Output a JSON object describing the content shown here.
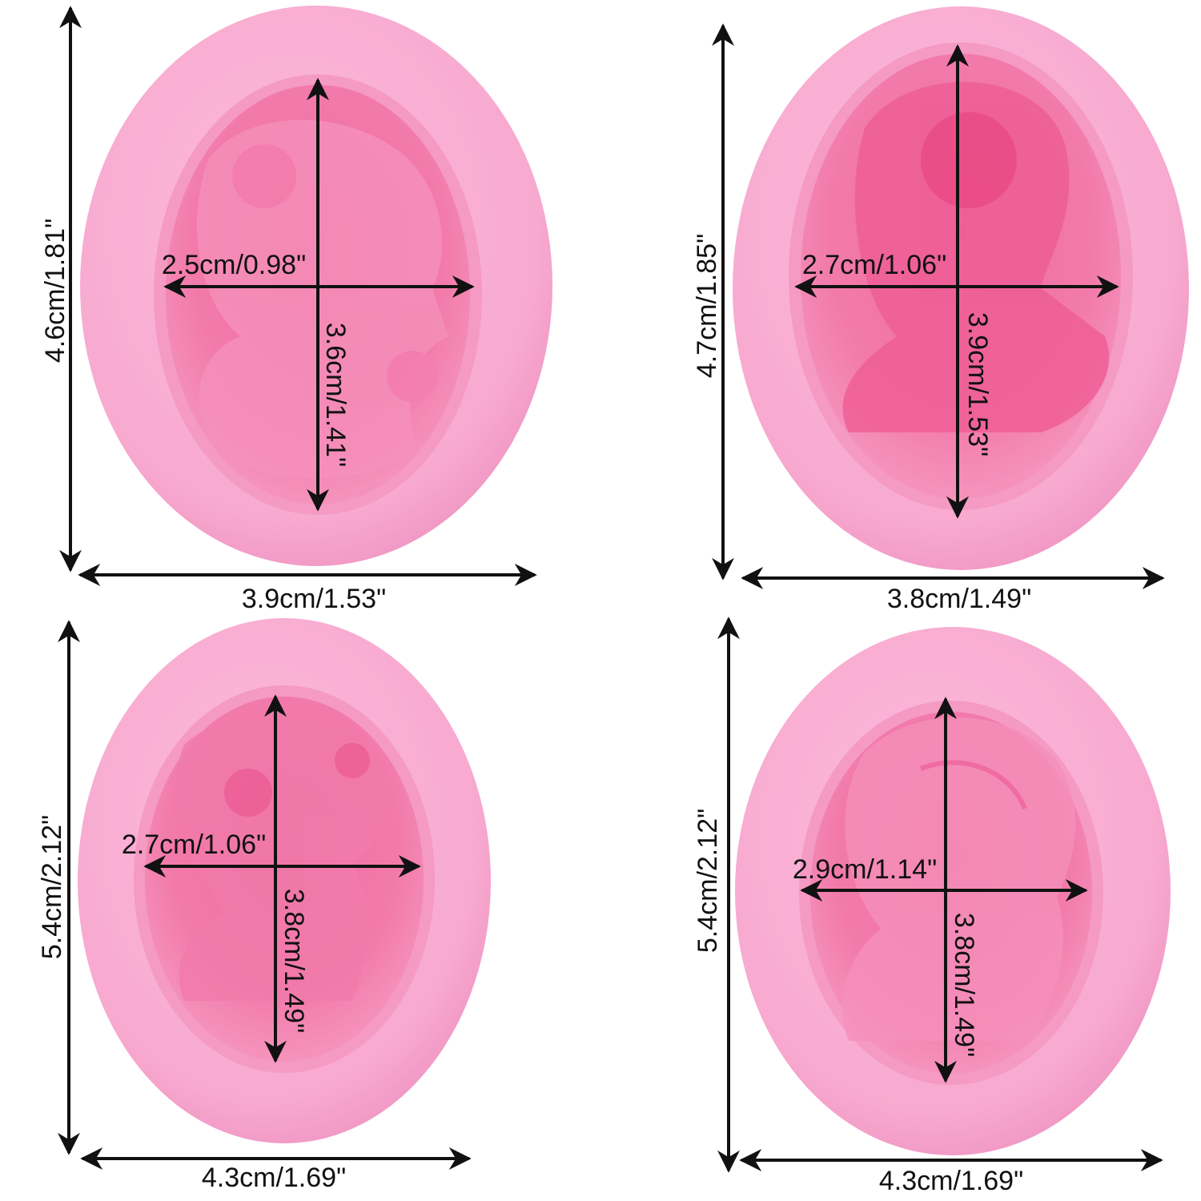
{
  "colors": {
    "mold_outer": "#f8a9cf",
    "mold_rim_shadow": "#ef8fc0",
    "cavity_fill": "#f27bab",
    "cavity_deep": "#ec5c94",
    "arrow": "#111111",
    "background": "#ffffff"
  },
  "icons": [
    "cameo-mold-oval",
    "cameo-lady-relief",
    "dimension-arrow"
  ],
  "molds": [
    {
      "name": "cameo-mold-1",
      "outer_height": "4.6cm/1.81\"",
      "outer_width": "3.9cm/1.53\"",
      "cavity_width": "2.5cm/0.98\"",
      "cavity_height": "3.6cm/1.41\""
    },
    {
      "name": "cameo-mold-2",
      "outer_height": "4.7cm/1.85\"",
      "outer_width": "3.8cm/1.49\"",
      "cavity_width": "2.7cm/1.06\"",
      "cavity_height": "3.9cm/1.53\""
    },
    {
      "name": "cameo-mold-3",
      "outer_height": "5.4cm/2.12\"",
      "outer_width": "4.3cm/1.69\"",
      "cavity_width": "2.7cm/1.06\"",
      "cavity_height": "3.8cm/1.49\""
    },
    {
      "name": "cameo-mold-4",
      "outer_height": "5.4cm/2.12\"",
      "outer_width": "4.3cm/1.69\"",
      "cavity_width": "2.9cm/1.14\"",
      "cavity_height": "3.8cm/1.49\""
    }
  ]
}
